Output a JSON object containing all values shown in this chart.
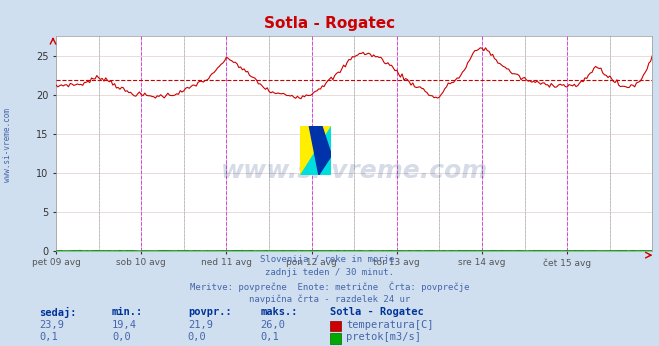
{
  "title": "Sotla - Rogatec",
  "title_color": "#cc0000",
  "bg_color": "#d0dff0",
  "plot_bg_color": "#ffffff",
  "grid_color": "#ddcccc",
  "grid_color2": "#cccccc",
  "x_labels": [
    "pet 09 avg",
    "sob 10 avg",
    "ned 11 avg",
    "pon 12 avg",
    "tor 13 avg",
    "sre 14 avg",
    "čet 15 avg"
  ],
  "n_points": 337,
  "ylim": [
    0,
    27.5
  ],
  "yticks": [
    0,
    5,
    10,
    15,
    20,
    25
  ],
  "avg_line_y": 21.9,
  "avg_line_color": "#cc0000",
  "temp_line_color": "#cc0000",
  "flow_line_color": "#00aa00",
  "vline_color_major": "#dd44dd",
  "vline_color_minor": "#aaaaaa",
  "watermark_text": "www.si-vreme.com",
  "watermark_color": "#1a3a7a",
  "watermark_alpha": 0.18,
  "subtitle_lines": [
    "Slovenija / reke in morje.",
    "zadnji teden / 30 minut.",
    "Meritve: povprečne  Enote: metrične  Črta: povprečje",
    "navpična črta - razdelek 24 ur"
  ],
  "subtitle_color": "#4466aa",
  "stats_color": "#4466aa",
  "stats_label_color": "#003399",
  "legend_title": "Sotla - Rogatec",
  "legend_title_color": "#003399",
  "sedaj_temp": "23,9",
  "min_temp": "19,4",
  "povpr_temp": "21,9",
  "maks_temp": "26,0",
  "sedaj_flow": "0,1",
  "min_flow": "0,0",
  "povpr_flow": "0,0",
  "maks_flow": "0,1",
  "ylabel_text": "www.si-vreme.com",
  "ylabel_color": "#4466aa"
}
